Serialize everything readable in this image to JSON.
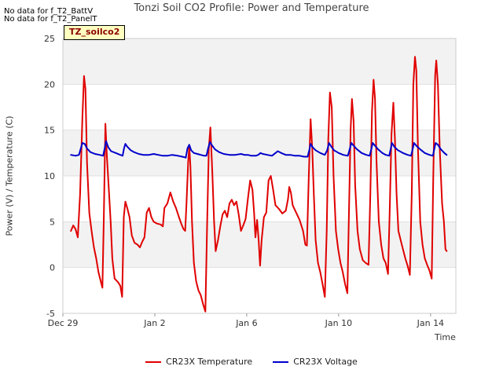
{
  "notices": [
    "No data for f_T2_BattV",
    "No data for f_T2_PanelT"
  ],
  "site_badge": "TZ_soilco2",
  "chart_data": {
    "type": "line",
    "title": "Tonzi Soil CO2 Profile: Power and Temperature",
    "xlabel": "Time",
    "ylabel": "Power (V) / Temperature (C)",
    "xlim": [
      0,
      17.1
    ],
    "ylim": [
      -5,
      25
    ],
    "yticks": [
      -5,
      0,
      5,
      10,
      15,
      20,
      25
    ],
    "xticks": [
      {
        "x": 0,
        "label": "Dec 29"
      },
      {
        "x": 4,
        "label": "Jan 2"
      },
      {
        "x": 8,
        "label": "Jan 6"
      },
      {
        "x": 12,
        "label": "Jan 10"
      },
      {
        "x": 16,
        "label": "Jan 14"
      }
    ],
    "grid": true,
    "legend_position": "bottom",
    "series": [
      {
        "name": "CR23X Temperature",
        "color": "#e00000",
        "points": [
          [
            0.35,
            4.0
          ],
          [
            0.45,
            4.6
          ],
          [
            0.55,
            4.2
          ],
          [
            0.65,
            3.3
          ],
          [
            0.75,
            8.0
          ],
          [
            0.85,
            16.5
          ],
          [
            0.92,
            20.9
          ],
          [
            0.98,
            19.5
          ],
          [
            1.05,
            11.5
          ],
          [
            1.15,
            6.0
          ],
          [
            1.25,
            4.0
          ],
          [
            1.35,
            2.2
          ],
          [
            1.45,
            1.0
          ],
          [
            1.55,
            -0.5
          ],
          [
            1.65,
            -1.5
          ],
          [
            1.72,
            -2.2
          ],
          [
            1.78,
            5.0
          ],
          [
            1.85,
            15.7
          ],
          [
            1.92,
            12.0
          ],
          [
            2.0,
            8.5
          ],
          [
            2.08,
            5.0
          ],
          [
            2.15,
            1.0
          ],
          [
            2.25,
            -1.2
          ],
          [
            2.4,
            -1.6
          ],
          [
            2.5,
            -2.0
          ],
          [
            2.58,
            -3.2
          ],
          [
            2.65,
            5.5
          ],
          [
            2.72,
            7.2
          ],
          [
            2.8,
            6.5
          ],
          [
            2.9,
            5.5
          ],
          [
            3.0,
            3.5
          ],
          [
            3.12,
            2.7
          ],
          [
            3.25,
            2.5
          ],
          [
            3.35,
            2.2
          ],
          [
            3.45,
            2.8
          ],
          [
            3.55,
            3.3
          ],
          [
            3.65,
            6.0
          ],
          [
            3.75,
            6.5
          ],
          [
            3.85,
            5.5
          ],
          [
            3.95,
            5.0
          ],
          [
            4.1,
            4.8
          ],
          [
            4.25,
            4.7
          ],
          [
            4.35,
            4.5
          ],
          [
            4.42,
            6.5
          ],
          [
            4.55,
            7.0
          ],
          [
            4.68,
            8.2
          ],
          [
            4.8,
            7.2
          ],
          [
            4.92,
            6.5
          ],
          [
            5.05,
            5.5
          ],
          [
            5.15,
            4.8
          ],
          [
            5.25,
            4.2
          ],
          [
            5.32,
            4.0
          ],
          [
            5.38,
            7.0
          ],
          [
            5.45,
            11.5
          ],
          [
            5.5,
            13.3
          ],
          [
            5.55,
            11.0
          ],
          [
            5.62,
            5.0
          ],
          [
            5.7,
            0.5
          ],
          [
            5.8,
            -1.5
          ],
          [
            5.9,
            -2.5
          ],
          [
            6.0,
            -3.0
          ],
          [
            6.1,
            -4.0
          ],
          [
            6.2,
            -4.8
          ],
          [
            6.28,
            5.0
          ],
          [
            6.35,
            13.0
          ],
          [
            6.42,
            15.3
          ],
          [
            6.5,
            10.5
          ],
          [
            6.58,
            5.0
          ],
          [
            6.65,
            1.8
          ],
          [
            6.75,
            3.0
          ],
          [
            6.85,
            4.5
          ],
          [
            6.95,
            5.8
          ],
          [
            7.05,
            6.2
          ],
          [
            7.15,
            5.5
          ],
          [
            7.25,
            7.0
          ],
          [
            7.35,
            7.4
          ],
          [
            7.45,
            6.8
          ],
          [
            7.55,
            7.2
          ],
          [
            7.65,
            5.8
          ],
          [
            7.75,
            4.0
          ],
          [
            7.85,
            4.6
          ],
          [
            7.95,
            5.3
          ],
          [
            8.05,
            7.5
          ],
          [
            8.15,
            9.5
          ],
          [
            8.25,
            8.5
          ],
          [
            8.32,
            6.0
          ],
          [
            8.38,
            3.3
          ],
          [
            8.45,
            5.2
          ],
          [
            8.52,
            3.0
          ],
          [
            8.58,
            0.2
          ],
          [
            8.65,
            3.0
          ],
          [
            8.75,
            5.5
          ],
          [
            8.85,
            6.0
          ],
          [
            8.95,
            9.5
          ],
          [
            9.05,
            10.0
          ],
          [
            9.15,
            8.5
          ],
          [
            9.25,
            6.8
          ],
          [
            9.4,
            6.4
          ],
          [
            9.55,
            5.9
          ],
          [
            9.7,
            6.2
          ],
          [
            9.8,
            7.5
          ],
          [
            9.85,
            8.8
          ],
          [
            9.92,
            8.2
          ],
          [
            10.0,
            6.8
          ],
          [
            10.15,
            6.0
          ],
          [
            10.3,
            5.2
          ],
          [
            10.45,
            4.0
          ],
          [
            10.55,
            2.5
          ],
          [
            10.62,
            2.4
          ],
          [
            10.7,
            10.0
          ],
          [
            10.78,
            16.2
          ],
          [
            10.85,
            13.0
          ],
          [
            10.92,
            8.0
          ],
          [
            11.0,
            3.0
          ],
          [
            11.1,
            0.5
          ],
          [
            11.2,
            -0.5
          ],
          [
            11.3,
            -1.8
          ],
          [
            11.4,
            -3.2
          ],
          [
            11.48,
            4.0
          ],
          [
            11.55,
            14.0
          ],
          [
            11.62,
            19.1
          ],
          [
            11.7,
            17.5
          ],
          [
            11.78,
            10.0
          ],
          [
            11.88,
            4.0
          ],
          [
            11.98,
            2.0
          ],
          [
            12.08,
            0.5
          ],
          [
            12.18,
            -0.5
          ],
          [
            12.28,
            -1.8
          ],
          [
            12.38,
            -2.8
          ],
          [
            12.45,
            6.0
          ],
          [
            12.52,
            15.0
          ],
          [
            12.58,
            18.4
          ],
          [
            12.65,
            16.0
          ],
          [
            12.72,
            9.0
          ],
          [
            12.82,
            4.0
          ],
          [
            12.92,
            2.0
          ],
          [
            13.05,
            0.8
          ],
          [
            13.18,
            0.5
          ],
          [
            13.3,
            0.3
          ],
          [
            13.38,
            8.0
          ],
          [
            13.45,
            17.0
          ],
          [
            13.52,
            20.5
          ],
          [
            13.58,
            18.5
          ],
          [
            13.65,
            11.5
          ],
          [
            13.75,
            5.0
          ],
          [
            13.85,
            2.5
          ],
          [
            13.95,
            1.0
          ],
          [
            14.05,
            0.5
          ],
          [
            14.15,
            -0.7
          ],
          [
            14.22,
            6.0
          ],
          [
            14.3,
            14.5
          ],
          [
            14.38,
            18.0
          ],
          [
            14.45,
            14.0
          ],
          [
            14.52,
            8.0
          ],
          [
            14.6,
            4.0
          ],
          [
            14.7,
            3.0
          ],
          [
            14.8,
            2.0
          ],
          [
            14.9,
            1.0
          ],
          [
            15.0,
            0.2
          ],
          [
            15.1,
            -0.8
          ],
          [
            15.18,
            8.0
          ],
          [
            15.25,
            20.0
          ],
          [
            15.32,
            23.0
          ],
          [
            15.38,
            21.5
          ],
          [
            15.45,
            13.0
          ],
          [
            15.55,
            5.0
          ],
          [
            15.65,
            2.5
          ],
          [
            15.75,
            1.0
          ],
          [
            15.85,
            0.3
          ],
          [
            15.95,
            -0.3
          ],
          [
            16.05,
            -1.2
          ],
          [
            16.12,
            10.0
          ],
          [
            16.2,
            21.0
          ],
          [
            16.25,
            22.6
          ],
          [
            16.32,
            20.0
          ],
          [
            16.4,
            13.0
          ],
          [
            16.5,
            7.0
          ],
          [
            16.58,
            5.0
          ],
          [
            16.65,
            2.0
          ],
          [
            16.7,
            1.8
          ]
        ]
      },
      {
        "name": "CR23X Voltage",
        "color": "#0000cc",
        "points": [
          [
            0.35,
            12.3
          ],
          [
            0.55,
            12.2
          ],
          [
            0.7,
            12.3
          ],
          [
            0.78,
            13.0
          ],
          [
            0.85,
            13.6
          ],
          [
            0.95,
            13.5
          ],
          [
            1.05,
            13.0
          ],
          [
            1.2,
            12.6
          ],
          [
            1.4,
            12.4
          ],
          [
            1.6,
            12.3
          ],
          [
            1.75,
            12.2
          ],
          [
            1.82,
            13.0
          ],
          [
            1.88,
            13.8
          ],
          [
            1.98,
            13.1
          ],
          [
            2.1,
            12.7
          ],
          [
            2.3,
            12.5
          ],
          [
            2.5,
            12.3
          ],
          [
            2.6,
            12.2
          ],
          [
            2.66,
            13.0
          ],
          [
            2.72,
            13.5
          ],
          [
            2.8,
            13.2
          ],
          [
            2.95,
            12.8
          ],
          [
            3.1,
            12.6
          ],
          [
            3.3,
            12.4
          ],
          [
            3.5,
            12.3
          ],
          [
            3.75,
            12.3
          ],
          [
            3.95,
            12.4
          ],
          [
            4.15,
            12.3
          ],
          [
            4.35,
            12.2
          ],
          [
            4.55,
            12.2
          ],
          [
            4.75,
            12.3
          ],
          [
            5.0,
            12.2
          ],
          [
            5.2,
            12.1
          ],
          [
            5.35,
            12.0
          ],
          [
            5.42,
            13.0
          ],
          [
            5.5,
            13.4
          ],
          [
            5.58,
            12.8
          ],
          [
            5.7,
            12.5
          ],
          [
            5.85,
            12.4
          ],
          [
            6.0,
            12.3
          ],
          [
            6.15,
            12.2
          ],
          [
            6.25,
            12.2
          ],
          [
            6.32,
            13.0
          ],
          [
            6.4,
            13.7
          ],
          [
            6.5,
            13.3
          ],
          [
            6.62,
            12.9
          ],
          [
            6.8,
            12.6
          ],
          [
            7.0,
            12.4
          ],
          [
            7.25,
            12.3
          ],
          [
            7.5,
            12.3
          ],
          [
            7.75,
            12.4
          ],
          [
            7.9,
            12.3
          ],
          [
            8.05,
            12.3
          ],
          [
            8.2,
            12.2
          ],
          [
            8.4,
            12.2
          ],
          [
            8.5,
            12.3
          ],
          [
            8.6,
            12.5
          ],
          [
            8.7,
            12.4
          ],
          [
            8.9,
            12.3
          ],
          [
            9.1,
            12.2
          ],
          [
            9.25,
            12.5
          ],
          [
            9.35,
            12.7
          ],
          [
            9.5,
            12.5
          ],
          [
            9.7,
            12.3
          ],
          [
            9.9,
            12.3
          ],
          [
            10.1,
            12.2
          ],
          [
            10.3,
            12.2
          ],
          [
            10.5,
            12.1
          ],
          [
            10.65,
            12.1
          ],
          [
            10.72,
            12.8
          ],
          [
            10.78,
            13.5
          ],
          [
            10.88,
            13.1
          ],
          [
            11.0,
            12.8
          ],
          [
            11.2,
            12.5
          ],
          [
            11.4,
            12.3
          ],
          [
            11.5,
            12.8
          ],
          [
            11.58,
            13.6
          ],
          [
            11.68,
            13.2
          ],
          [
            11.8,
            12.8
          ],
          [
            12.0,
            12.5
          ],
          [
            12.2,
            12.3
          ],
          [
            12.4,
            12.2
          ],
          [
            12.48,
            12.9
          ],
          [
            12.55,
            13.6
          ],
          [
            12.65,
            13.3
          ],
          [
            12.8,
            12.9
          ],
          [
            13.0,
            12.5
          ],
          [
            13.2,
            12.3
          ],
          [
            13.35,
            12.2
          ],
          [
            13.42,
            12.9
          ],
          [
            13.48,
            13.6
          ],
          [
            13.58,
            13.3
          ],
          [
            13.72,
            12.9
          ],
          [
            13.9,
            12.5
          ],
          [
            14.05,
            12.3
          ],
          [
            14.2,
            12.2
          ],
          [
            14.26,
            12.9
          ],
          [
            14.32,
            13.6
          ],
          [
            14.42,
            13.2
          ],
          [
            14.58,
            12.8
          ],
          [
            14.8,
            12.5
          ],
          [
            15.0,
            12.3
          ],
          [
            15.15,
            12.2
          ],
          [
            15.22,
            12.9
          ],
          [
            15.28,
            13.6
          ],
          [
            15.38,
            13.3
          ],
          [
            15.55,
            12.9
          ],
          [
            15.75,
            12.5
          ],
          [
            15.95,
            12.3
          ],
          [
            16.1,
            12.2
          ],
          [
            16.16,
            12.9
          ],
          [
            16.22,
            13.6
          ],
          [
            16.32,
            13.4
          ],
          [
            16.45,
            12.9
          ],
          [
            16.6,
            12.5
          ],
          [
            16.7,
            12.3
          ]
        ]
      }
    ]
  }
}
